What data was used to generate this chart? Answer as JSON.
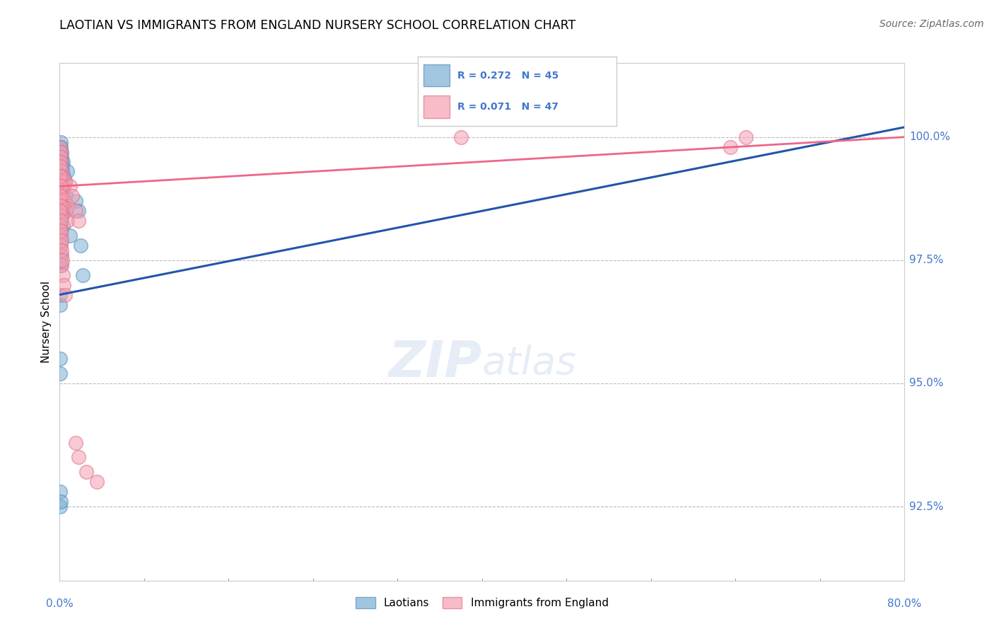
{
  "title": "LAOTIAN VS IMMIGRANTS FROM ENGLAND NURSERY SCHOOL CORRELATION CHART",
  "source_text": "Source: ZipAtlas.com",
  "ylabel": "Nursery School",
  "ytick_labels": [
    "100.0%",
    "97.5%",
    "95.0%",
    "92.5%"
  ],
  "ytick_values": [
    100.0,
    97.5,
    95.0,
    92.5
  ],
  "ymin": 91.0,
  "ymax": 101.5,
  "xmin": 0.0,
  "xmax": 80.0,
  "blue_R": 0.272,
  "blue_N": 45,
  "pink_R": 0.071,
  "pink_N": 47,
  "blue_color": "#7BAFD4",
  "pink_color": "#F4A0B0",
  "blue_edge": "#5590BB",
  "pink_edge": "#E07090",
  "blue_label": "Laotians",
  "pink_label": "Immigrants from England",
  "watermark_zip": "ZIP",
  "watermark_atlas": "atlas",
  "blue_trend_x": [
    0.0,
    80.0
  ],
  "blue_trend_y": [
    96.8,
    100.2
  ],
  "pink_trend_x": [
    0.0,
    80.0
  ],
  "pink_trend_y": [
    99.0,
    100.0
  ],
  "blue_points_x": [
    0.05,
    0.08,
    0.12,
    0.15,
    0.18,
    0.2,
    0.22,
    0.25,
    0.3,
    0.35,
    0.4,
    0.5,
    0.6,
    0.7,
    1.5,
    1.8,
    0.05,
    0.06,
    0.07,
    0.09,
    0.11,
    0.13,
    0.16,
    0.19,
    0.21,
    0.28,
    0.05,
    0.06,
    0.08,
    0.1,
    0.12,
    0.14,
    0.05,
    0.07,
    0.05,
    0.07,
    2.2,
    0.05,
    0.06,
    0.05,
    0.07,
    0.1,
    0.6,
    1.0,
    2.0
  ],
  "blue_points_y": [
    99.8,
    99.9,
    99.8,
    99.7,
    99.6,
    99.5,
    99.4,
    99.3,
    99.5,
    99.2,
    99.0,
    99.1,
    98.8,
    99.3,
    98.7,
    98.5,
    99.6,
    99.7,
    99.5,
    99.2,
    98.9,
    98.7,
    98.6,
    98.5,
    98.4,
    98.2,
    98.5,
    98.3,
    98.1,
    97.9,
    97.6,
    97.4,
    97.8,
    97.5,
    96.8,
    96.6,
    97.2,
    95.2,
    95.5,
    92.8,
    92.5,
    92.6,
    98.5,
    98.0,
    97.8
  ],
  "pink_points_x": [
    0.05,
    0.08,
    0.1,
    0.12,
    0.15,
    0.18,
    0.2,
    0.22,
    0.25,
    0.3,
    0.35,
    0.4,
    0.5,
    0.6,
    0.7,
    0.8,
    1.0,
    1.2,
    1.5,
    1.8,
    0.06,
    0.07,
    0.09,
    0.11,
    0.13,
    0.16,
    0.05,
    0.08,
    0.1,
    0.15,
    0.2,
    0.3,
    0.4,
    0.5,
    0.05,
    0.08,
    0.12,
    0.15,
    0.18,
    0.22,
    1.5,
    1.8,
    2.5,
    3.5,
    38.0,
    65.0,
    63.5
  ],
  "pink_points_y": [
    99.8,
    99.7,
    99.6,
    99.5,
    99.3,
    99.1,
    99.0,
    99.2,
    98.9,
    98.8,
    99.0,
    98.7,
    99.1,
    98.5,
    98.3,
    98.6,
    99.0,
    98.8,
    98.5,
    98.3,
    99.4,
    99.2,
    99.0,
    98.8,
    98.6,
    98.4,
    98.2,
    98.0,
    97.8,
    97.6,
    97.4,
    97.2,
    97.0,
    96.8,
    98.5,
    98.3,
    98.1,
    97.9,
    97.7,
    97.5,
    93.8,
    93.5,
    93.2,
    93.0,
    100.0,
    100.0,
    99.8
  ]
}
